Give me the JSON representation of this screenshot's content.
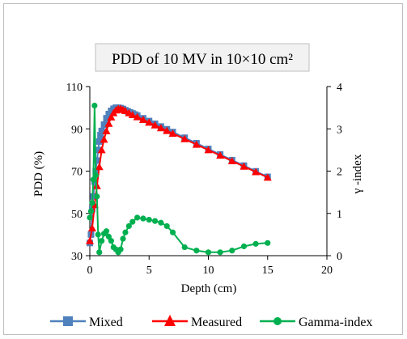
{
  "chart_data": {
    "type": "line",
    "title": "PDD of 10 MV in 10×10 cm²",
    "xlabel": "Depth (cm)",
    "ylabel": "PDD (%)",
    "y2label": "γ -index",
    "xlim": [
      0,
      20
    ],
    "ylim": [
      30,
      110
    ],
    "y2lim": [
      0,
      4
    ],
    "xticks": [
      "0",
      "5",
      "10",
      "15",
      "20"
    ],
    "yticks": [
      "30",
      "50",
      "70",
      "90",
      "110"
    ],
    "y2ticks": [
      "0",
      "1",
      "2",
      "3",
      "4"
    ],
    "grid": false,
    "legend_position": "bottom",
    "series": [
      {
        "name": "Mixed",
        "axis": "left",
        "color": "#4f81bd",
        "marker": "square",
        "x": [
          0,
          0.1,
          0.2,
          0.3,
          0.4,
          0.5,
          0.6,
          0.7,
          0.8,
          0.9,
          1.0,
          1.2,
          1.4,
          1.6,
          1.8,
          2.0,
          2.2,
          2.4,
          2.6,
          2.8,
          3.0,
          3.2,
          3.4,
          3.6,
          3.8,
          4.0,
          4.5,
          5.0,
          5.5,
          6.0,
          6.5,
          7.0,
          8.0,
          9.0,
          10.0,
          11.0,
          12.0,
          13.0,
          14.0,
          15.0
        ],
        "values": [
          36,
          40,
          52,
          58,
          65,
          70,
          75,
          80,
          84,
          87,
          89,
          92,
          95,
          97,
          98.5,
          99.5,
          100,
          100,
          99.8,
          99.4,
          98.8,
          98.3,
          97.8,
          97.3,
          96.8,
          96.3,
          95,
          93.7,
          92.4,
          91.1,
          89.8,
          88.5,
          85.8,
          83.2,
          80.5,
          77.9,
          75.2,
          72.6,
          69.9,
          67.3
        ]
      },
      {
        "name": "Measured",
        "axis": "left",
        "color": "#ff0000",
        "marker": "triangle",
        "x": [
          0,
          0.2,
          0.4,
          0.6,
          0.8,
          1.0,
          1.2,
          1.4,
          1.6,
          1.8,
          2.0,
          2.2,
          2.4,
          2.6,
          2.8,
          3.0,
          3.3,
          3.6,
          4.0,
          4.5,
          5.0,
          5.5,
          6.0,
          6.5,
          7.0,
          8.0,
          9.0,
          10.0,
          11.0,
          12.0,
          13.0,
          14.0,
          15.0
        ],
        "values": [
          37,
          43,
          54,
          63,
          72,
          80,
          85,
          89,
          92.5,
          95.5,
          97.5,
          98.8,
          99.5,
          99.5,
          99,
          98.5,
          97.5,
          96.6,
          95.6,
          94.3,
          93,
          91.7,
          90.4,
          89.1,
          87.8,
          85.2,
          82.6,
          80,
          77.4,
          74.8,
          72.2,
          69.6,
          67
        ]
      },
      {
        "name": "Gamma-index",
        "axis": "right",
        "color": "#00b050",
        "marker": "circle",
        "x": [
          0,
          0.1,
          0.2,
          0.3,
          0.4,
          0.5,
          0.6,
          0.7,
          0.8,
          1.0,
          1.2,
          1.4,
          1.6,
          1.8,
          2.0,
          2.2,
          2.4,
          2.6,
          2.8,
          3.0,
          3.3,
          3.6,
          4.0,
          4.5,
          5.0,
          5.5,
          6.0,
          6.5,
          7.0,
          8.0,
          9.0,
          10.0,
          11.0,
          12.0,
          13.0,
          14.0,
          15.0
        ],
        "values": [
          0.9,
          1.05,
          1.25,
          1.8,
          3.55,
          1.9,
          1.4,
          0.5,
          0.08,
          0.35,
          0.52,
          0.58,
          0.45,
          0.35,
          0.2,
          0.15,
          0.08,
          0.15,
          0.4,
          0.55,
          0.7,
          0.8,
          0.9,
          0.88,
          0.85,
          0.82,
          0.78,
          0.7,
          0.55,
          0.2,
          0.12,
          0.08,
          0.08,
          0.12,
          0.22,
          0.28,
          0.3
        ]
      }
    ]
  }
}
